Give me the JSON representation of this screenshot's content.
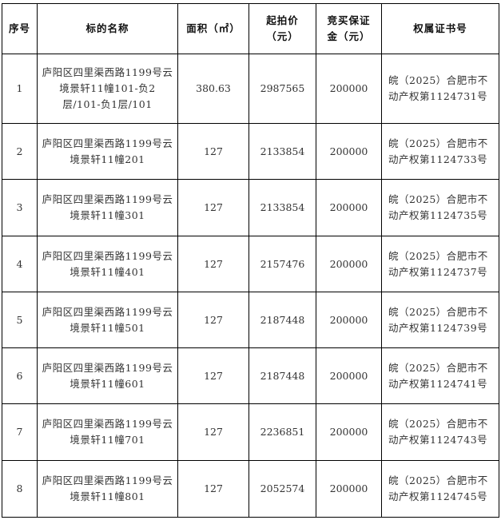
{
  "headers": [
    "序号",
    "标的名称",
    "面积（㎡）",
    "起拍价（元）",
    "竞买保证金（元）",
    "权属证书号"
  ],
  "rows": [
    {
      "no": "1",
      "name": "庐阳区四里渠西路1199号云境景轩11幢101-负2层/101-负1层/101",
      "area": "380.63",
      "price": "2987565",
      "deposit": "200000",
      "cert": "皖（2025）合肥市不动产权第1124731号"
    },
    {
      "no": "2",
      "name": "庐阳区四里渠西路1199号云境景轩11幢201",
      "area": "127",
      "price": "2133854",
      "deposit": "200000",
      "cert": "皖（2025）合肥市不动产权第1124733号"
    },
    {
      "no": "3",
      "name": "庐阳区四里渠西路1199号云境景轩11幢301",
      "area": "127",
      "price": "2133854",
      "deposit": "200000",
      "cert": "皖（2025）合肥市不动产权第1124735号"
    },
    {
      "no": "4",
      "name": "庐阳区四里渠西路1199号云境景轩11幢401",
      "area": "127",
      "price": "2157476",
      "deposit": "200000",
      "cert": "皖（2025）合肥市不动产权第1124737号"
    },
    {
      "no": "5",
      "name": "庐阳区四里渠西路1199号云境景轩11幢501",
      "area": "127",
      "price": "2187448",
      "deposit": "200000",
      "cert": "皖（2025）合肥市不动产权第1124739号"
    },
    {
      "no": "6",
      "name": "庐阳区四里渠西路1199号云境景轩11幢601",
      "area": "127",
      "price": "2187448",
      "deposit": "200000",
      "cert": "皖（2025）合肥市不动产权第1124741号"
    },
    {
      "no": "7",
      "name": "庐阳区四里渠西路1199号云境景轩11幢701",
      "area": "127",
      "price": "2236851",
      "deposit": "200000",
      "cert": "皖（2025）合肥市不动产权第1124743号"
    },
    {
      "no": "8",
      "name": "庐阳区四里渠西路1199号云境景轩11幢801",
      "area": "127",
      "price": "2052574",
      "deposit": "200000",
      "cert": "皖（2025）合肥市不动产权第1124745号"
    }
  ]
}
